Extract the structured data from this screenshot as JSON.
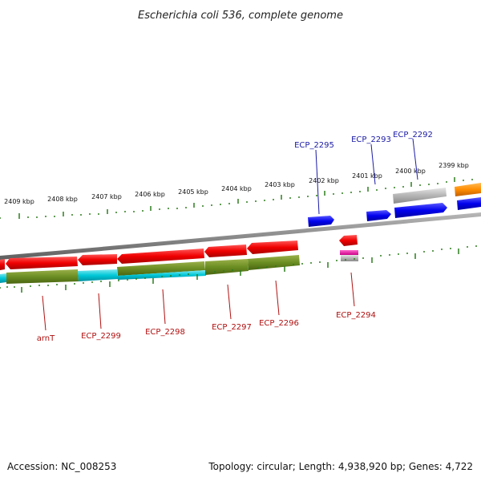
{
  "title": "Escherichia coli 536, complete genome",
  "footer": {
    "accession": "Accession: NC_008253",
    "summary": "Topology: circular; Length: 4,938,920 bp; Genes: 4,722"
  },
  "colors": {
    "ruler": "#2d7d1d",
    "backbone": "#8c8c8c",
    "forward_label": "#1a1aa6",
    "reverse_label": "#b01010"
  },
  "ruler_labels": [
    "2409 kbp",
    "2408 kbp",
    "2407 kbp",
    "2406 kbp",
    "2405 kbp",
    "2404 kbp",
    "2403 kbp",
    "2402 kbp",
    "2401 kbp",
    "2400 kbp",
    "2399 kbp"
  ],
  "forward_labels": [
    "ECP_2295",
    "ECP_2293",
    "ECP_2292"
  ],
  "reverse_labels": [
    "arnT",
    "ECP_2299",
    "ECP_2298",
    "ECP_2297",
    "ECP_2296",
    "ECP_2294"
  ]
}
